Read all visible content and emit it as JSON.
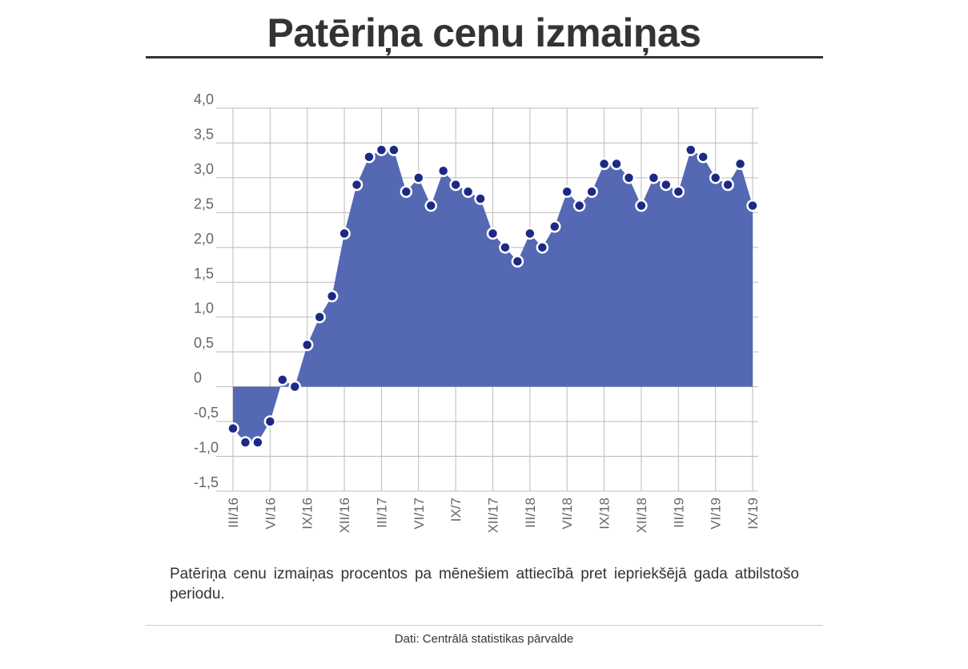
{
  "header": {
    "title": "Patēriņa cenu izmaiņas"
  },
  "note": "Patēriņa cenu izmaiņas procentos pa mēnešiem attiecībā pret iepriekšējā gada atbilstošo periodu.",
  "source": "Dati: Centrālā statistikas pārvalde",
  "colors": {
    "area": "#5468b4",
    "point": "#1c2a85",
    "point_stroke": "#ffffff",
    "grid": "#bbbbbb",
    "axis_text": "#666666",
    "title": "#333333"
  },
  "chart_data": {
    "type": "area",
    "title": "Patēriņa cenu izmaiņas",
    "xlabel": "",
    "ylabel": "",
    "ylim": [
      -1.5,
      4.0
    ],
    "yticks": [
      4.0,
      3.5,
      3.0,
      2.5,
      2.0,
      1.5,
      1.0,
      0.5,
      0,
      -0.5,
      -1.0,
      -1.5
    ],
    "ytick_labels": [
      "4,0",
      "3,5",
      "3,0",
      "2,5",
      "2,0",
      "1,5",
      "1,0",
      "0,5",
      "0",
      "-0,5",
      "-1,0",
      "-1,5"
    ],
    "xtick_labels": [
      "III/16",
      "VI/16",
      "IX/16",
      "XII/16",
      "III/17",
      "VI/17",
      "IX/7",
      "XII/17",
      "III/18",
      "VI/18",
      "IX/18",
      "XII/18",
      "III/19",
      "VI/19",
      "IX/19"
    ],
    "grid": true,
    "series": [
      {
        "values": [
          -0.6,
          -0.8,
          -0.8,
          -0.5,
          0.1,
          0.0,
          0.6,
          1.0,
          1.3,
          2.2,
          2.9,
          3.3,
          3.4,
          3.4,
          2.8,
          3.0,
          2.6,
          3.1,
          2.9,
          2.8,
          2.7,
          2.2,
          2.0,
          1.8,
          2.2,
          2.0,
          2.3,
          2.8,
          2.6,
          2.8,
          3.2,
          3.2,
          3.0,
          2.6,
          3.0,
          2.9,
          2.8,
          3.4,
          3.3,
          3.0,
          2.9,
          3.2,
          2.6
        ]
      }
    ]
  }
}
